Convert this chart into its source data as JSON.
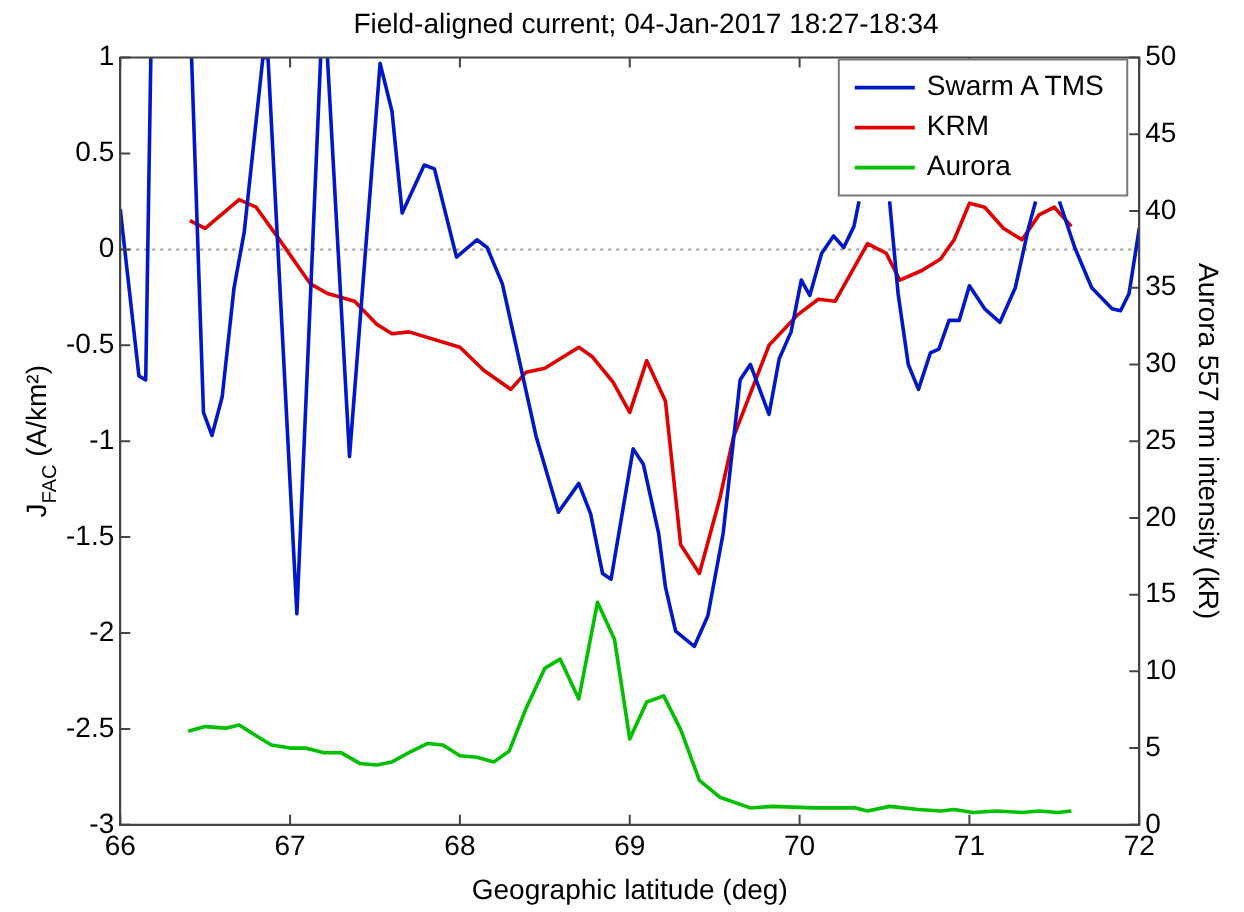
{
  "chart_data": {
    "type": "line",
    "title": "Field-aligned current; 04-Jan-2017 18:27-18:34",
    "xlabel": "Geographic latitude (deg)",
    "ylabel": "J$_{FAC}$ (A/km²)",
    "y2label": "Aurora 557 nm intensity (kR)",
    "xlim": [
      66,
      72
    ],
    "xticks": [
      66,
      67,
      68,
      69,
      70,
      71,
      72
    ],
    "ylim": [
      -3,
      1
    ],
    "yticks": [
      -3,
      -2.5,
      -2,
      -1.5,
      -1,
      -0.5,
      0,
      0.5,
      1
    ],
    "y2lim": [
      0,
      50
    ],
    "y2ticks": [
      0,
      5,
      10,
      15,
      20,
      25,
      30,
      35,
      40,
      45,
      50
    ],
    "grid": false,
    "legend": "top right",
    "marker": "none",
    "line_style": "solid",
    "ref_lines": [
      {
        "axis": "y",
        "value": 0,
        "label": null,
        "color": "#999999",
        "line_style": "dotted"
      }
    ],
    "series": [
      {
        "name": "Swarm A TMS",
        "color": "#0018c8",
        "x": [
          66.0,
          66.11,
          66.15,
          66.18,
          66.3,
          66.42,
          66.49,
          66.54,
          66.6,
          66.67,
          66.73,
          66.84,
          66.87,
          67.04,
          67.18,
          67.2,
          67.22,
          67.35,
          67.53,
          67.6,
          67.66,
          67.79,
          67.85,
          67.98,
          68.1,
          68.16,
          68.25,
          68.45,
          68.58,
          68.7,
          68.77,
          68.84,
          68.89,
          69.02,
          69.08,
          69.17,
          69.21,
          69.27,
          69.38,
          69.46,
          69.55,
          69.65,
          69.71,
          69.82,
          69.88,
          69.95,
          70.01,
          70.06,
          70.13,
          70.2,
          70.26,
          70.32,
          70.35,
          70.44,
          70.53,
          70.58,
          70.64,
          70.7,
          70.77,
          70.82,
          70.88,
          70.94,
          71.0,
          71.09,
          71.18,
          71.27,
          71.35,
          71.39,
          71.46,
          71.53,
          71.62,
          71.72,
          71.84,
          71.89,
          71.94,
          72.0
        ],
        "values": [
          0.21,
          -0.66,
          -0.68,
          1,
          null,
          1,
          -0.85,
          -0.97,
          -0.77,
          -0.2,
          0.09,
          1,
          1,
          -1.9,
          1,
          null,
          1,
          -1.08,
          0.97,
          0.72,
          0.19,
          0.44,
          0.42,
          -0.04,
          0.05,
          0.01,
          -0.18,
          -0.98,
          -1.37,
          -1.22,
          -1.38,
          -1.69,
          -1.72,
          -1.04,
          -1.12,
          -1.48,
          -1.76,
          -1.99,
          -2.07,
          -1.91,
          -1.48,
          -0.68,
          -0.6,
          -0.86,
          -0.57,
          -0.43,
          -0.16,
          -0.24,
          -0.02,
          0.07,
          0.01,
          0.12,
          0.25,
          null,
          0.25,
          -0.23,
          -0.6,
          -0.73,
          -0.54,
          -0.52,
          -0.37,
          -0.37,
          -0.19,
          -0.31,
          -0.38,
          -0.2,
          0.12,
          0.25,
          null,
          0.25,
          0.01,
          -0.2,
          -0.31,
          -0.32,
          -0.23,
          0.11
        ]
      },
      {
        "name": "KRM",
        "color": "#e00000",
        "x": [
          66.41,
          66.5,
          66.7,
          66.8,
          66.93,
          67.12,
          67.22,
          67.38,
          67.51,
          67.6,
          67.7,
          68.0,
          68.14,
          68.3,
          68.39,
          68.5,
          68.7,
          68.78,
          68.9,
          69.0,
          69.1,
          69.21,
          69.3,
          69.41,
          69.53,
          69.61,
          69.82,
          69.99,
          70.11,
          70.21,
          70.4,
          70.51,
          70.59,
          70.72,
          70.83,
          70.91,
          71.0,
          71.09,
          71.2,
          71.31,
          71.41,
          71.5,
          71.6
        ],
        "values": [
          0.15,
          0.11,
          0.26,
          0.22,
          0.06,
          -0.18,
          -0.23,
          -0.27,
          -0.39,
          -0.44,
          -0.43,
          -0.51,
          -0.63,
          -0.73,
          -0.64,
          -0.62,
          -0.51,
          -0.56,
          -0.69,
          -0.85,
          -0.58,
          -0.79,
          -1.54,
          -1.69,
          -1.3,
          -0.98,
          -0.5,
          -0.34,
          -0.26,
          -0.27,
          0.03,
          -0.02,
          -0.16,
          -0.11,
          -0.05,
          0.05,
          0.24,
          0.22,
          0.11,
          0.05,
          0.18,
          0.22,
          0.12
        ]
      },
      {
        "name": "Aurora",
        "color": "#00c000",
        "axis": "y2",
        "x": [
          66.4,
          66.5,
          66.62,
          66.7,
          66.8,
          66.89,
          67.0,
          67.09,
          67.2,
          67.3,
          67.41,
          67.51,
          67.6,
          67.7,
          67.81,
          67.9,
          68.0,
          68.1,
          68.2,
          68.29,
          68.39,
          68.5,
          68.59,
          68.7,
          68.81,
          68.91,
          69.0,
          69.1,
          69.2,
          69.3,
          69.41,
          69.53,
          69.71,
          69.84,
          70.08,
          70.33,
          70.4,
          70.53,
          70.7,
          70.83,
          70.91,
          71.02,
          71.16,
          71.31,
          71.41,
          71.52,
          71.6
        ],
        "values": [
          6.1,
          6.4,
          6.3,
          6.5,
          5.8,
          5.2,
          5.0,
          5.0,
          4.7,
          4.7,
          4.0,
          3.9,
          4.1,
          4.7,
          5.3,
          5.2,
          4.5,
          4.4,
          4.1,
          4.8,
          7.6,
          10.2,
          10.8,
          8.2,
          14.5,
          12.1,
          5.6,
          8.0,
          8.4,
          6.2,
          2.9,
          1.8,
          1.1,
          1.2,
          1.1,
          1.1,
          0.9,
          1.2,
          1.0,
          0.9,
          1.0,
          0.8,
          0.9,
          0.8,
          0.9,
          0.8,
          0.9
        ]
      }
    ]
  }
}
